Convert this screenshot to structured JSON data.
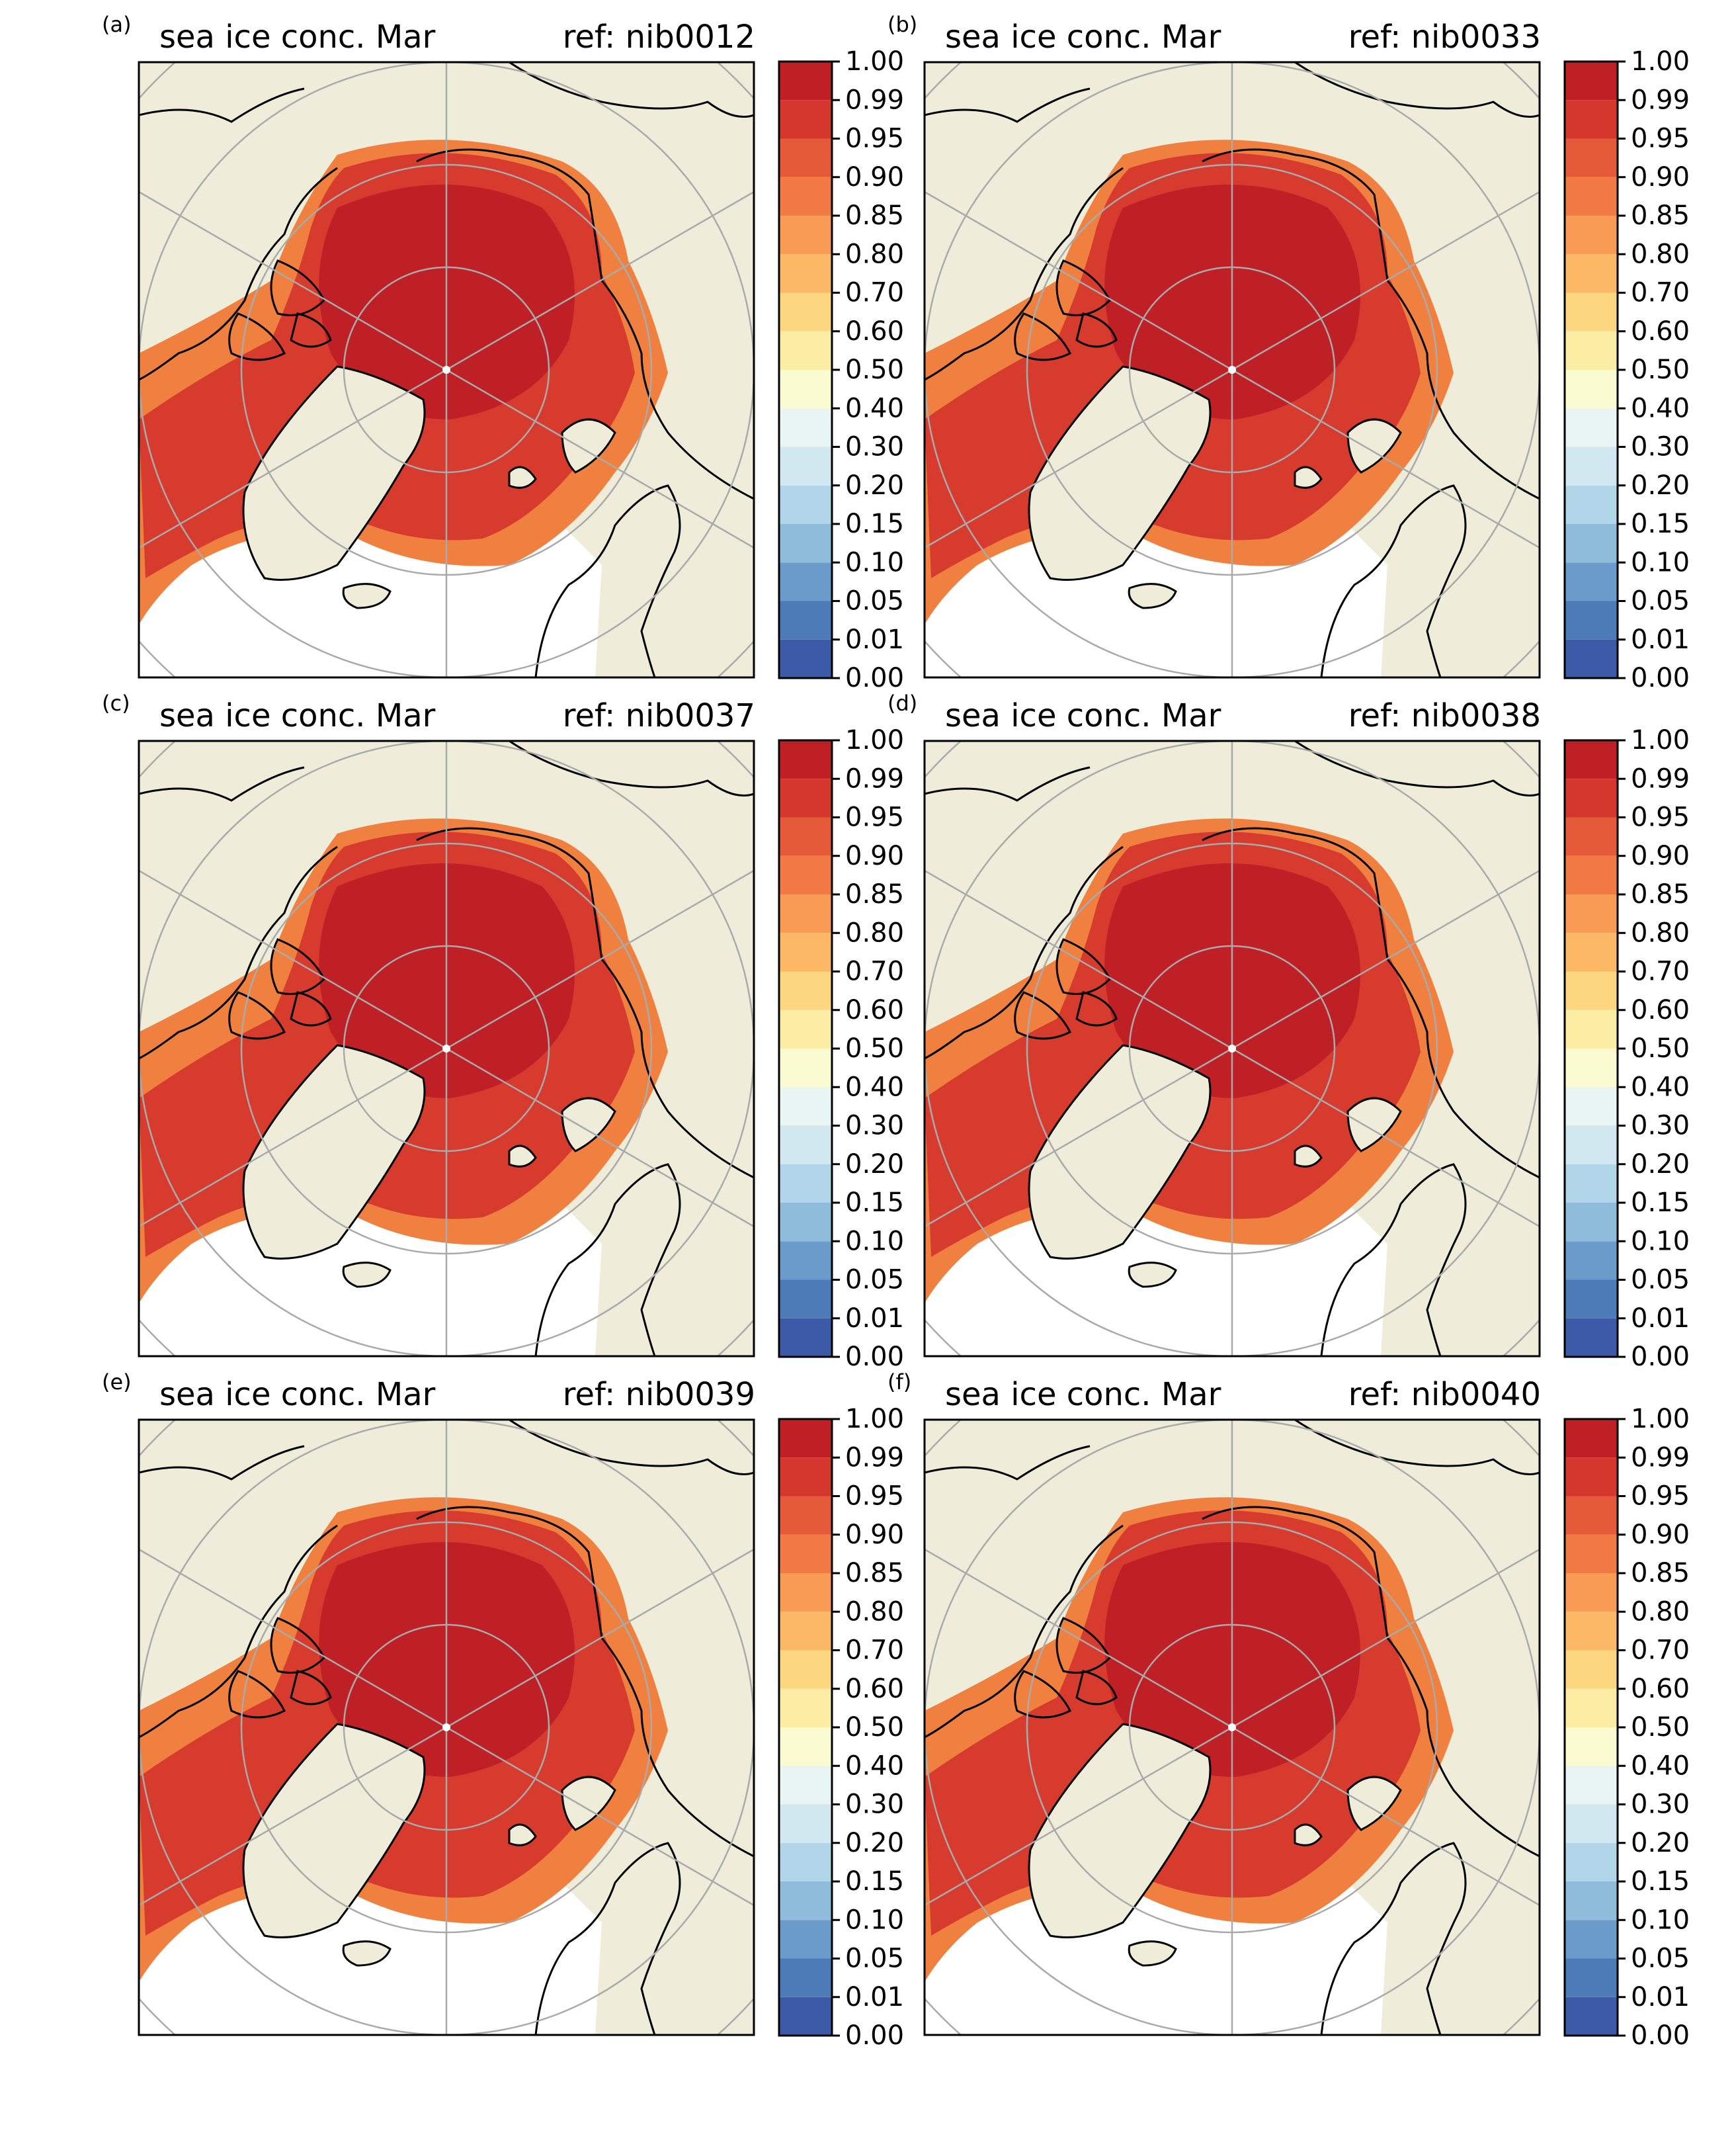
{
  "figure": {
    "panels": [
      {
        "letter": "(a)",
        "title": "sea ice conc. Mar",
        "ref": "ref: nib0012"
      },
      {
        "letter": "(b)",
        "title": "sea ice conc. Mar",
        "ref": "ref: nib0033"
      },
      {
        "letter": "(c)",
        "title": "sea ice conc. Mar",
        "ref": "ref: nib0037"
      },
      {
        "letter": "(d)",
        "title": "sea ice conc. Mar",
        "ref": "ref: nib0038"
      },
      {
        "letter": "(e)",
        "title": "sea ice conc. Mar",
        "ref": "ref: nib0039"
      },
      {
        "letter": "(f)",
        "title": "sea ice conc. Mar",
        "ref": "ref: nib0040"
      }
    ],
    "colorbar": {
      "ticks": [
        "0.00",
        "0.01",
        "0.05",
        "0.10",
        "0.15",
        "0.20",
        "0.30",
        "0.40",
        "0.50",
        "0.60",
        "0.70",
        "0.80",
        "0.85",
        "0.90",
        "0.95",
        "0.99",
        "1.00"
      ],
      "colors": [
        "#3d5aa8",
        "#4c7bb8",
        "#6a9bcb",
        "#8fbcdb",
        "#b2d6e9",
        "#d1e8f1",
        "#e9f5f2",
        "#fbfbd2",
        "#fbeda3",
        "#fdd680",
        "#fcb864",
        "#f99a55",
        "#f27a45",
        "#e55a39",
        "#d4382d",
        "#be2026"
      ]
    },
    "map_colors": {
      "land": "#efedda",
      "ocean": "#ffffff",
      "ice_core": "#be2026",
      "ice_mid": "#d63b2e",
      "ice_edge": "#f0803f",
      "coast": "#000000",
      "grid": "#aaaaaa"
    }
  }
}
